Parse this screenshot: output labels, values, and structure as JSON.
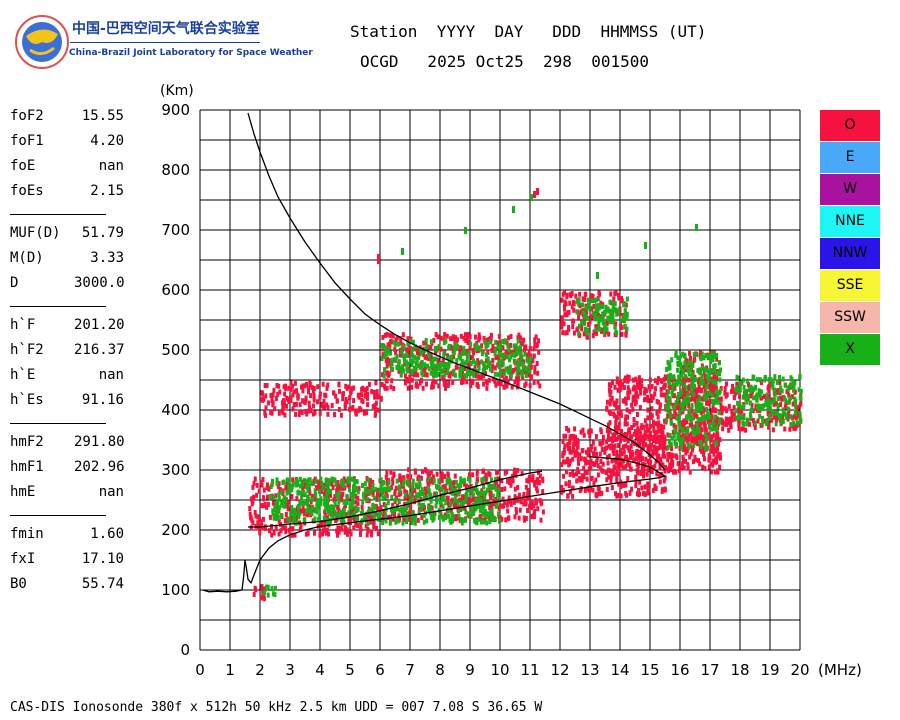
{
  "logo": {
    "name_cn": "中国-巴西空间天气联合实验室",
    "name_en": "China-Brazil Joint Laboratory for Space Weather"
  },
  "header": {
    "labels": "Station  YYYY  DAY   DDD  HHMMSS (UT)",
    "values": "OCGD   2025 Oct25  298  001500"
  },
  "params": [
    {
      "name": "foF2",
      "value": "15.55"
    },
    {
      "name": "foF1",
      "value": "4.20"
    },
    {
      "name": "foE",
      "value": "nan"
    },
    {
      "name": "foEs",
      "value": "2.15"
    },
    {
      "sep": true
    },
    {
      "name": "MUF(D)",
      "value": "51.79"
    },
    {
      "name": "M(D)",
      "value": "3.33"
    },
    {
      "name": "D",
      "value": "3000.0"
    },
    {
      "sep": true
    },
    {
      "name": "h`F",
      "value": "201.20"
    },
    {
      "name": "h`F2",
      "value": "216.37"
    },
    {
      "name": "h`E",
      "value": "nan"
    },
    {
      "name": "h`Es",
      "value": "91.16"
    },
    {
      "sep": true
    },
    {
      "name": "hmF2",
      "value": "291.80"
    },
    {
      "name": "hmF1",
      "value": "202.96"
    },
    {
      "name": "hmE",
      "value": "nan"
    },
    {
      "sep": true
    },
    {
      "name": "fmin",
      "value": "1.60"
    },
    {
      "name": "fxI",
      "value": "17.10"
    },
    {
      "name": "B0",
      "value": "55.74"
    }
  ],
  "legend": [
    {
      "label": "O",
      "color": "#f5123f"
    },
    {
      "label": "E",
      "color": "#4aa8f8"
    },
    {
      "label": "W",
      "color": "#a8129e"
    },
    {
      "label": "NNE",
      "color": "#1ef6f6"
    },
    {
      "label": "NNW",
      "color": "#2b14e8"
    },
    {
      "label": "SSE",
      "color": "#f6f634"
    },
    {
      "label": "SSW",
      "color": "#f7b6ac"
    },
    {
      "label": "X",
      "color": "#17b017"
    }
  ],
  "footer": "CAS-DIS Ionosonde 380f x 512h 50 kHz 2.5 km UDD = 007 7.08 S 36.65 W",
  "chart_data": {
    "type": "scatter",
    "title": "",
    "xlabel": "(MHz)",
    "ylabel": "(Km)",
    "xlim": [
      0,
      20
    ],
    "ylim": [
      0,
      900
    ],
    "x_ticks": [
      0,
      1,
      2,
      3,
      4,
      5,
      6,
      7,
      8,
      9,
      10,
      11,
      12,
      13,
      14,
      15,
      16,
      17,
      18,
      19,
      20
    ],
    "y_ticks": [
      0,
      100,
      200,
      300,
      400,
      500,
      600,
      700,
      800,
      900
    ],
    "grid": true,
    "grid_step": {
      "x": 1,
      "y": 50
    },
    "series": [
      {
        "label": "O",
        "color": "#f5123f",
        "kind": "band",
        "bands": [
          {
            "x": [
              1.7,
              2.2
            ],
            "y": [
              85,
              110
            ]
          },
          {
            "x": [
              1.6,
              6.0
            ],
            "y": [
              195,
              290
            ]
          },
          {
            "x": [
              6.0,
              11.4
            ],
            "y": [
              220,
              305
            ]
          },
          {
            "x": [
              12.0,
              15.5
            ],
            "y": [
              260,
              375
            ]
          },
          {
            "x": [
              13.5,
              17.3
            ],
            "y": [
              300,
              460
            ]
          },
          {
            "x": [
              16.0,
              17.2
            ],
            "y": [
              330,
              500
            ]
          },
          {
            "x": [
              17.3,
              20.0
            ],
            "y": [
              370,
              450
            ]
          },
          {
            "x": [
              2.0,
              6.0
            ],
            "y": [
              395,
              450
            ]
          },
          {
            "x": [
              6.0,
              11.3
            ],
            "y": [
              440,
              530
            ]
          },
          {
            "x": [
              12.0,
              14.2
            ],
            "y": [
              525,
              600
            ]
          }
        ],
        "points": [
          [
            5.9,
            660
          ],
          [
            5.9,
            655
          ],
          [
            11.1,
            765
          ],
          [
            11.2,
            770
          ],
          [
            15.6,
            330
          ]
        ]
      },
      {
        "label": "X",
        "color": "#17b017",
        "kind": "band",
        "bands": [
          {
            "x": [
              2.0,
              2.5
            ],
            "y": [
              90,
              110
            ]
          },
          {
            "x": [
              2.3,
              10.0
            ],
            "y": [
              215,
              290
            ]
          },
          {
            "x": [
              6.0,
              11.0
            ],
            "y": [
              460,
              520
            ]
          },
          {
            "x": [
              12.5,
              14.2
            ],
            "y": [
              530,
              590
            ]
          },
          {
            "x": [
              15.5,
              17.3
            ],
            "y": [
              340,
              500
            ]
          },
          {
            "x": [
              17.8,
              20.0
            ],
            "y": [
              380,
              460
            ]
          }
        ],
        "points": [
          [
            6.7,
            670
          ],
          [
            8.8,
            705
          ],
          [
            10.4,
            740
          ],
          [
            11.0,
            760
          ],
          [
            13.2,
            630
          ],
          [
            14.8,
            680
          ],
          [
            16.5,
            710
          ]
        ]
      }
    ],
    "traces": [
      {
        "name": "upper",
        "color": "#000000",
        "points": [
          [
            1.6,
            895
          ],
          [
            1.8,
            860
          ],
          [
            2.0,
            830
          ],
          [
            2.3,
            790
          ],
          [
            2.6,
            755
          ],
          [
            3.0,
            720
          ],
          [
            3.5,
            680
          ],
          [
            4.0,
            645
          ],
          [
            4.5,
            612
          ],
          [
            5.0,
            585
          ],
          [
            5.5,
            560
          ],
          [
            6.0,
            542
          ],
          [
            6.5,
            526
          ],
          [
            7.0,
            512
          ],
          [
            7.5,
            500
          ],
          [
            8.0,
            489
          ],
          [
            8.5,
            478
          ],
          [
            9.0,
            469
          ],
          [
            9.5,
            459
          ],
          [
            10.0,
            450
          ],
          [
            10.5,
            440
          ],
          [
            11.0,
            430
          ],
          [
            11.5,
            420
          ],
          [
            12.0,
            410
          ],
          [
            12.5,
            398
          ],
          [
            13.0,
            386
          ],
          [
            13.5,
            374
          ],
          [
            14.0,
            360
          ],
          [
            14.5,
            345
          ],
          [
            15.0,
            325
          ],
          [
            15.3,
            312
          ],
          [
            15.5,
            300
          ]
        ]
      },
      {
        "name": "lower",
        "color": "#000000",
        "points": [
          [
            0.1,
            100
          ],
          [
            0.3,
            97
          ],
          [
            0.6,
            98
          ],
          [
            0.9,
            97
          ],
          [
            1.2,
            98
          ],
          [
            1.4,
            100
          ],
          [
            1.45,
            120
          ],
          [
            1.5,
            150
          ],
          [
            1.55,
            135
          ],
          [
            1.6,
            118
          ],
          [
            1.7,
            112
          ],
          [
            1.8,
            125
          ],
          [
            2.0,
            150
          ],
          [
            2.3,
            170
          ],
          [
            2.6,
            182
          ],
          [
            3.0,
            192
          ],
          [
            3.5,
            200
          ],
          [
            4.0,
            206
          ],
          [
            5.0,
            212
          ],
          [
            6.0,
            218
          ],
          [
            7.0,
            224
          ],
          [
            8.0,
            232
          ],
          [
            9.0,
            240
          ],
          [
            10.0,
            248
          ],
          [
            11.0,
            256
          ],
          [
            12.0,
            264
          ],
          [
            13.0,
            272
          ],
          [
            14.0,
            279
          ],
          [
            14.5,
            282
          ],
          [
            15.0,
            285
          ],
          [
            15.3,
            287
          ],
          [
            15.5,
            290
          ],
          [
            15.3,
            296
          ],
          [
            15.0,
            305
          ],
          [
            14.5,
            312
          ],
          [
            14.0,
            318
          ],
          [
            13.0,
            322
          ]
        ]
      },
      {
        "name": "mid",
        "color": "#000000",
        "points": [
          [
            1.6,
            205
          ],
          [
            2.0,
            205
          ],
          [
            3.0,
            210
          ],
          [
            4.0,
            214
          ],
          [
            5.0,
            222
          ],
          [
            6.0,
            232
          ],
          [
            7.0,
            244
          ],
          [
            8.0,
            258
          ],
          [
            9.0,
            270
          ],
          [
            10.0,
            284
          ],
          [
            11.0,
            295
          ],
          [
            11.4,
            298
          ]
        ]
      }
    ]
  }
}
